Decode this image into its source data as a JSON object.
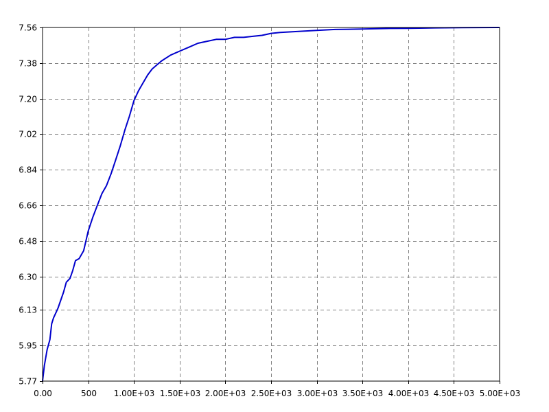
{
  "chart_data": {
    "type": "line",
    "title": "",
    "xlabel": "",
    "ylabel": "",
    "xlim": [
      0,
      5000
    ],
    "ylim": [
      5.77,
      7.56
    ],
    "grid": true,
    "legend": "none",
    "x_ticks": [
      0,
      500,
      1000,
      1500,
      2000,
      2500,
      3000,
      3500,
      4000,
      4500,
      5000
    ],
    "x_tick_labels": [
      "0.00",
      "500",
      "1.00E+03",
      "1.50E+03",
      "2.00E+03",
      "2.50E+03",
      "3.00E+03",
      "3.50E+03",
      "4.00E+03",
      "4.50E+03",
      "5.00E+03"
    ],
    "y_ticks": [
      5.77,
      5.95,
      6.13,
      6.3,
      6.48,
      6.66,
      6.84,
      7.02,
      7.2,
      7.38,
      7.56
    ],
    "y_tick_labels": [
      "5.77",
      "5.95",
      "6.13",
      "6.30",
      "6.48",
      "6.66",
      "6.84",
      "7.02",
      "7.20",
      "7.38",
      "7.56"
    ],
    "colors": {
      "line": "#0000cc",
      "grid": "#808080",
      "axis": "#000000"
    },
    "series": [
      {
        "x": [
          0,
          20,
          50,
          80,
          100,
          120,
          150,
          170,
          200,
          230,
          260,
          300,
          330,
          360,
          400,
          450,
          500,
          550,
          600,
          650,
          700,
          750,
          800,
          850,
          900,
          950,
          1000,
          1050,
          1100,
          1150,
          1200,
          1300,
          1400,
          1500,
          1600,
          1700,
          1800,
          1900,
          2000,
          2100,
          2200,
          2300,
          2400,
          2500,
          2600,
          2800,
          3000,
          3200,
          3500,
          3800,
          4000,
          4300,
          4600,
          5000
        ],
        "y": [
          5.77,
          5.85,
          5.93,
          5.98,
          6.06,
          6.09,
          6.12,
          6.14,
          6.18,
          6.22,
          6.27,
          6.29,
          6.33,
          6.38,
          6.39,
          6.43,
          6.53,
          6.6,
          6.66,
          6.72,
          6.76,
          6.82,
          6.89,
          6.96,
          7.04,
          7.11,
          7.19,
          7.24,
          7.28,
          7.32,
          7.35,
          7.39,
          7.42,
          7.44,
          7.46,
          7.48,
          7.49,
          7.5,
          7.5,
          7.51,
          7.51,
          7.515,
          7.52,
          7.53,
          7.535,
          7.54,
          7.545,
          7.55,
          7.552,
          7.555,
          7.556,
          7.558,
          7.559,
          7.56
        ]
      }
    ]
  }
}
